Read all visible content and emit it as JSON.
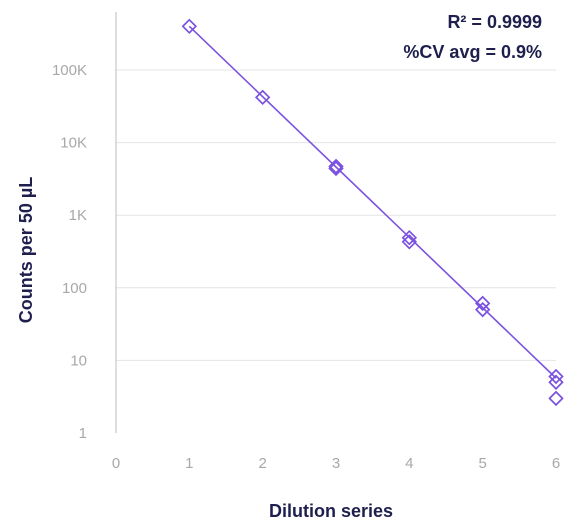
{
  "chart_data": {
    "type": "scatter",
    "xlabel": "Dilution series",
    "ylabel": "Counts per 50 µL",
    "xlim": [
      0,
      6
    ],
    "ylim": [
      1,
      1000000
    ],
    "y_scale": "log",
    "x_ticks": [
      "0",
      "1",
      "2",
      "3",
      "4",
      "5",
      "6"
    ],
    "y_ticks": [
      {
        "value": 1,
        "label": "1"
      },
      {
        "value": 10,
        "label": "10"
      },
      {
        "value": 100,
        "label": "100"
      },
      {
        "value": 1000,
        "label": "1K"
      },
      {
        "value": 10000,
        "label": "10K"
      },
      {
        "value": 100000,
        "label": "100K"
      }
    ],
    "grid": "horizontal",
    "points": [
      {
        "x": 1,
        "y": 400000
      },
      {
        "x": 2,
        "y": 42000
      },
      {
        "x": 3,
        "y": 4400
      },
      {
        "x": 3,
        "y": 4700
      },
      {
        "x": 4,
        "y": 430
      },
      {
        "x": 4,
        "y": 490
      },
      {
        "x": 5,
        "y": 50
      },
      {
        "x": 5,
        "y": 61
      },
      {
        "x": 6,
        "y": 3
      },
      {
        "x": 6,
        "y": 5
      },
      {
        "x": 6,
        "y": 6
      }
    ],
    "fit_line": {
      "x": [
        1,
        6
      ],
      "y": [
        400000,
        5.7
      ]
    },
    "annotations": [
      "R² = 0.9999",
      "%CV avg = 0.9%"
    ],
    "colors": {
      "series": "#7b52e0",
      "grid": "#e4e4e4",
      "axis": "#bdbdbd",
      "tick_text": "#a8a8a8",
      "title_text": "#1f1f4e"
    }
  }
}
